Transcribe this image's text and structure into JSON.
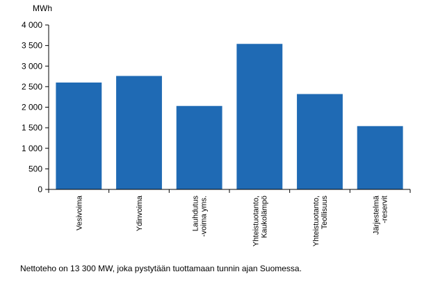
{
  "chart_data": {
    "type": "bar",
    "ylabel": "MWh",
    "ylim": [
      0,
      4000
    ],
    "yticks": [
      0,
      500,
      1000,
      1500,
      2000,
      2500,
      3000,
      3500,
      4000
    ],
    "ytick_labels": [
      "0",
      "500",
      "1 000",
      "1 500",
      "2 000",
      "2 500",
      "3 000",
      "3 500",
      "4 000"
    ],
    "categories": [
      [
        "Vesivoima"
      ],
      [
        "Ydinvoima"
      ],
      [
        "Lauhdutus",
        "-voima yms."
      ],
      [
        "Yhteistuotanto,",
        "Kaukolämpö"
      ],
      [
        "Yhteistuotanto,",
        "Teollisuus"
      ],
      [
        "Järjestelmä",
        "-reservit"
      ]
    ],
    "values": [
      2600,
      2760,
      2030,
      3540,
      2320,
      1540
    ],
    "bar_color": "#1f6ab4",
    "grid": false,
    "legend": "none"
  },
  "footnote": "Nettoteho on 13 300 MW, joka pystytään tuottamaan tunnin ajan Suomessa."
}
